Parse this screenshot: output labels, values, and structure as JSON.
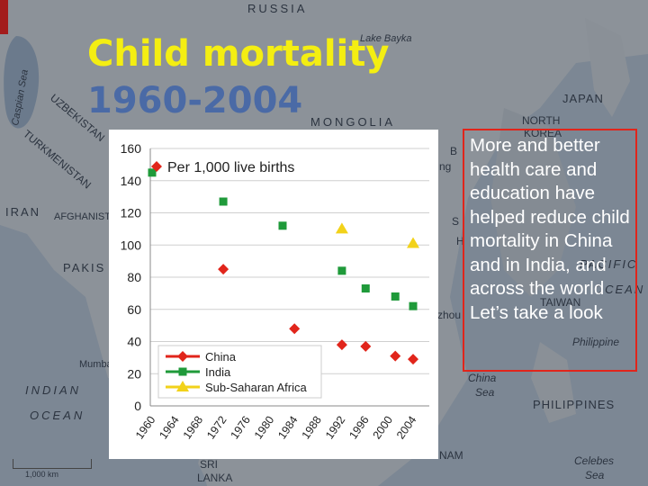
{
  "title": {
    "line1": "Child mortality",
    "line2": "1960-2004"
  },
  "note": "More and better health care and education have helped reduce child mortality in China and in India, and across the world Let’s take a look",
  "map_labels": {
    "russia": "RUSSIA",
    "lake_baykal": "Lake Bayka",
    "caspian_sea": "Caspian Sea",
    "uzbekistan": "UZBEKISTAN",
    "turkmenistan": "TURKMENISTAN",
    "iran": "IRAN",
    "afghanistan": "AFGHANIST",
    "pakistan": "PAKIS",
    "mongolia": "MONGOLIA",
    "japan": "JAPAN",
    "north_korea_1": "NORTH",
    "north_korea_2": "KOREA",
    "indian_ocean_1": "INDIAN",
    "indian_ocean_2": "OCEAN",
    "mumbai": "Mumba",
    "pacific_ocean_1": "PACIFIC",
    "pacific_ocean_2": "OCEAN",
    "philippines": "PHILIPPINES",
    "philippine_sea": "Philippine",
    "south_china_sea_1": "China",
    "south_china_sea_2": "Sea",
    "sri_lanka_1": "SRI",
    "sri_lanka_2": "LANKA",
    "vietnam": "NAM",
    "celebes_1": "Celebes",
    "celebes_2": "Sea",
    "taiwan": "TAIWAN",
    "guangzhou": "zhou",
    "hanoi": "H",
    "scale": "1,000 km",
    "ng": "ng",
    "b": "B",
    "s": "S"
  },
  "colors": {
    "title_line1": "#f4ee12",
    "title_line2": "#4a6aa6",
    "china": "#e1251b",
    "india": "#1f9a3a",
    "ssa": "#f2d21a",
    "note_border": "#e1251b"
  },
  "chart_data": {
    "type": "scatter",
    "title": "",
    "subtitle": "Per 1,000 live births",
    "xlabel": "",
    "ylabel": "",
    "ylim": [
      0,
      160
    ],
    "yticks": [
      0,
      20,
      40,
      60,
      80,
      100,
      120,
      140,
      160
    ],
    "xticks": [
      "1960",
      "1964",
      "1968",
      "1972",
      "1976",
      "1980",
      "1984",
      "1988",
      "1992",
      "1996",
      "2000",
      "2004"
    ],
    "grid": true,
    "legend_position": "bottom-left",
    "series": [
      {
        "name": "China",
        "marker": "diamond",
        "color": "#e1251b",
        "points": [
          {
            "x": 1972,
            "y": 85
          },
          {
            "x": 1984,
            "y": 48
          },
          {
            "x": 1992,
            "y": 38
          },
          {
            "x": 1996,
            "y": 37
          },
          {
            "x": 2001,
            "y": 31
          },
          {
            "x": 2004,
            "y": 29
          }
        ]
      },
      {
        "name": "India",
        "marker": "square",
        "color": "#1f9a3a",
        "points": [
          {
            "x": 1960,
            "y": 145
          },
          {
            "x": 1972,
            "y": 127
          },
          {
            "x": 1982,
            "y": 112
          },
          {
            "x": 1992,
            "y": 84
          },
          {
            "x": 1996,
            "y": 73
          },
          {
            "x": 2001,
            "y": 68
          },
          {
            "x": 2004,
            "y": 62
          }
        ]
      },
      {
        "name": "Sub-Saharan Africa",
        "marker": "triangle",
        "color": "#f2d21a",
        "points": [
          {
            "x": 1992,
            "y": 110
          },
          {
            "x": 2004,
            "y": 101
          }
        ]
      }
    ]
  }
}
